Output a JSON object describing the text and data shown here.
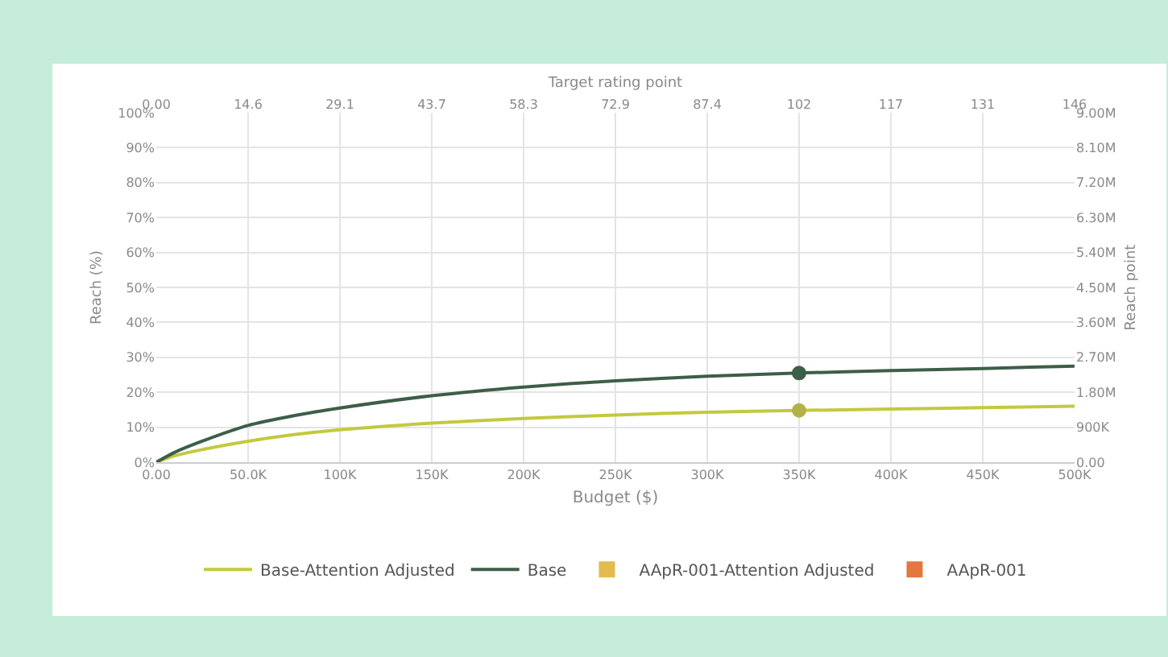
{
  "chart_data": {
    "type": "line",
    "xlabel": "Budget ($)",
    "ylabel": "Reach (%)",
    "y2label": "Reach point",
    "x2label": "Target rating point",
    "x": [
      0,
      10000,
      25000,
      50000,
      75000,
      100000,
      150000,
      200000,
      250000,
      300000,
      350000,
      400000,
      450000,
      500000
    ],
    "series": [
      {
        "name": "Base-Attention Adjusted",
        "color": "#c3c93e",
        "values": [
          0,
          1.8,
          3.6,
          6,
          7.9,
          9.3,
          11.2,
          12.5,
          13.5,
          14.3,
          14.8,
          15.2,
          15.6,
          16
        ]
      },
      {
        "name": "Base",
        "color": "#3d5e48",
        "values": [
          0,
          2.8,
          6,
          10.5,
          13.3,
          15.5,
          19,
          21.5,
          23.3,
          24.6,
          25.5,
          26.2,
          26.8,
          27.5
        ]
      },
      {
        "name": "AApR-001-Attention Adjusted",
        "color": "#e3bb4f",
        "values": [
          null,
          null,
          null,
          null,
          null,
          null,
          null,
          null,
          null,
          null,
          null,
          null,
          null,
          null
        ]
      },
      {
        "name": "AApR-001",
        "color": "#e4773f",
        "values": [
          null,
          null,
          null,
          null,
          null,
          null,
          null,
          null,
          null,
          null,
          null,
          null,
          null,
          null
        ]
      },
      {
        "type": "scatter",
        "x": [
          350000
        ],
        "color": "#3d5e48",
        "marker": "circle",
        "values": [
          25.5
        ]
      },
      {
        "type": "scatter",
        "x": [
          350000
        ],
        "color": "#b2b247",
        "marker": "circle",
        "values": [
          14.8
        ]
      }
    ],
    "xlim": [
      0,
      500000
    ],
    "xticks": [
      {
        "value": 0,
        "label": "0.00"
      },
      {
        "value": 50000,
        "label": "50.0K"
      },
      {
        "value": 100000,
        "label": "100K"
      },
      {
        "value": 150000,
        "label": "150K"
      },
      {
        "value": 200000,
        "label": "200K"
      },
      {
        "value": 250000,
        "label": "250K"
      },
      {
        "value": 300000,
        "label": "300K"
      },
      {
        "value": 350000,
        "label": "350K"
      },
      {
        "value": 400000,
        "label": "400K"
      },
      {
        "value": 450000,
        "label": "450K"
      },
      {
        "value": 500000,
        "label": "500K"
      }
    ],
    "ylim": [
      0,
      100
    ],
    "yticks": [
      {
        "value": 0,
        "label": "0%"
      },
      {
        "value": 10,
        "label": "10%"
      },
      {
        "value": 20,
        "label": "20%"
      },
      {
        "value": 30,
        "label": "30%"
      },
      {
        "value": 40,
        "label": "40%"
      },
      {
        "value": 50,
        "label": "50%"
      },
      {
        "value": 60,
        "label": "60%"
      },
      {
        "value": 70,
        "label": "70%"
      },
      {
        "value": 80,
        "label": "80%"
      },
      {
        "value": 90,
        "label": "90%"
      },
      {
        "value": 100,
        "label": "100%"
      }
    ],
    "x2lim": [
      0,
      145.7
    ],
    "x2ticks": [
      {
        "value": 0,
        "label": "0.00"
      },
      {
        "value": 14.57,
        "label": "14.6"
      },
      {
        "value": 29.14,
        "label": "29.1"
      },
      {
        "value": 43.71,
        "label": "43.7"
      },
      {
        "value": 58.28,
        "label": "58.3"
      },
      {
        "value": 72.85,
        "label": "72.9"
      },
      {
        "value": 87.42,
        "label": "87.4"
      },
      {
        "value": 101.99,
        "label": "102"
      },
      {
        "value": 116.56,
        "label": "117"
      },
      {
        "value": 131.13,
        "label": "131"
      },
      {
        "value": 145.7,
        "label": "146"
      }
    ],
    "y2lim": [
      0,
      9000000
    ],
    "y2ticks": [
      {
        "value": 0,
        "label": "0.00"
      },
      {
        "value": 900000,
        "label": "900K"
      },
      {
        "value": 1800000,
        "label": "1.80M"
      },
      {
        "value": 2700000,
        "label": "2.70M"
      },
      {
        "value": 3600000,
        "label": "3.60M"
      },
      {
        "value": 4500000,
        "label": "4.50M"
      },
      {
        "value": 5400000,
        "label": "5.40M"
      },
      {
        "value": 6300000,
        "label": "6.30M"
      },
      {
        "value": 7200000,
        "label": "7.20M"
      },
      {
        "value": 8100000,
        "label": "8.10M"
      },
      {
        "value": 9000000,
        "label": "9.00M"
      }
    ],
    "grid": true,
    "legend": "bottom",
    "marker": "none",
    "line_style": "solid"
  }
}
